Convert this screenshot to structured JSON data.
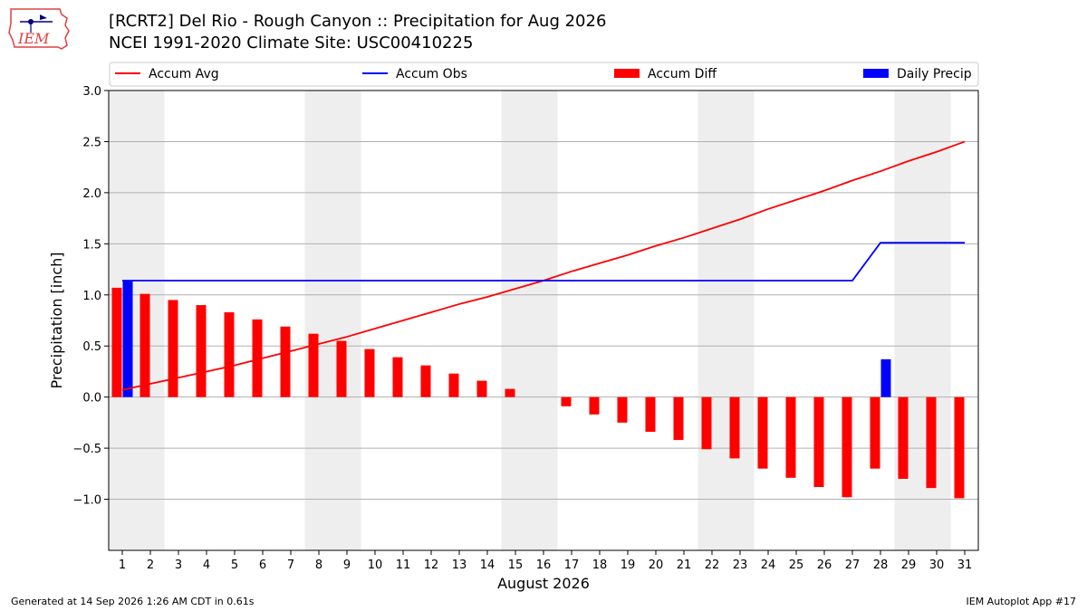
{
  "header": {
    "title_line1": "[RCRT2] Del Rio - Rough Canyon :: Precipitation for Aug 2026",
    "title_line2": "NCEI 1991-2020 Climate Site: USC00410225"
  },
  "logo": {
    "text": "IEM",
    "icon": "iem-iowa-logo"
  },
  "footer": {
    "left": "Generated at 14 Sep 2026 1:26 AM CDT in 0.61s",
    "right": "IEM Autoplot App #17"
  },
  "colors": {
    "accum_avg": "#ff0000",
    "accum_obs": "#0000ff",
    "accum_diff": "#ff0000",
    "daily_precip": "#0000ff",
    "weekend_band": "#eeeeee",
    "grid": "#b0b0b0"
  },
  "chart_data": {
    "type": "bar",
    "xlabel": "August 2026",
    "ylabel": "Precipitation [inch]",
    "ylim": [
      -1.5,
      3.0
    ],
    "yticks": [
      -1.0,
      -0.5,
      0.0,
      0.5,
      1.0,
      1.5,
      2.0,
      2.5,
      3.0
    ],
    "ytick_labels": [
      "−1.0",
      "−0.5",
      "0.0",
      "0.5",
      "1.0",
      "1.5",
      "2.0",
      "2.5",
      "3.0"
    ],
    "grid": "horizontal",
    "legend_position": "top",
    "shaded_day_ranges": [
      [
        1,
        2
      ],
      [
        8,
        9
      ],
      [
        15,
        16
      ],
      [
        22,
        23
      ],
      [
        29,
        30
      ]
    ],
    "days": [
      1,
      2,
      3,
      4,
      5,
      6,
      7,
      8,
      9,
      10,
      11,
      12,
      13,
      14,
      15,
      16,
      17,
      18,
      19,
      20,
      21,
      22,
      23,
      24,
      25,
      26,
      27,
      28,
      29,
      30,
      31
    ],
    "series": [
      {
        "name": "Accum Avg",
        "kind": "line",
        "values": [
          0.07,
          0.13,
          0.19,
          0.25,
          0.31,
          0.38,
          0.45,
          0.52,
          0.59,
          0.67,
          0.75,
          0.83,
          0.91,
          0.98,
          1.06,
          1.14,
          1.23,
          1.31,
          1.39,
          1.48,
          1.56,
          1.65,
          1.74,
          1.84,
          1.93,
          2.02,
          2.12,
          2.21,
          2.31,
          2.4,
          2.5
        ]
      },
      {
        "name": "Accum Obs",
        "kind": "line",
        "values": [
          1.14,
          1.14,
          1.14,
          1.14,
          1.14,
          1.14,
          1.14,
          1.14,
          1.14,
          1.14,
          1.14,
          1.14,
          1.14,
          1.14,
          1.14,
          1.14,
          1.14,
          1.14,
          1.14,
          1.14,
          1.14,
          1.14,
          1.14,
          1.14,
          1.14,
          1.14,
          1.14,
          1.51,
          1.51,
          1.51,
          1.51
        ]
      },
      {
        "name": "Accum Diff",
        "kind": "bar",
        "values": [
          1.07,
          1.01,
          0.95,
          0.9,
          0.83,
          0.76,
          0.69,
          0.62,
          0.55,
          0.47,
          0.39,
          0.31,
          0.23,
          0.16,
          0.08,
          0.0,
          -0.09,
          -0.17,
          -0.25,
          -0.34,
          -0.42,
          -0.51,
          -0.6,
          -0.7,
          -0.79,
          -0.88,
          -0.98,
          -0.7,
          -0.8,
          -0.89,
          -0.99
        ]
      },
      {
        "name": "Daily Precip",
        "kind": "bar",
        "values": [
          1.14,
          0,
          0,
          0,
          0,
          0,
          0,
          0,
          0,
          0,
          0,
          0,
          0,
          0,
          0,
          0,
          0,
          0,
          0,
          0,
          0,
          0,
          0,
          0,
          0,
          0,
          0,
          0.37,
          0,
          0,
          0
        ]
      }
    ]
  }
}
